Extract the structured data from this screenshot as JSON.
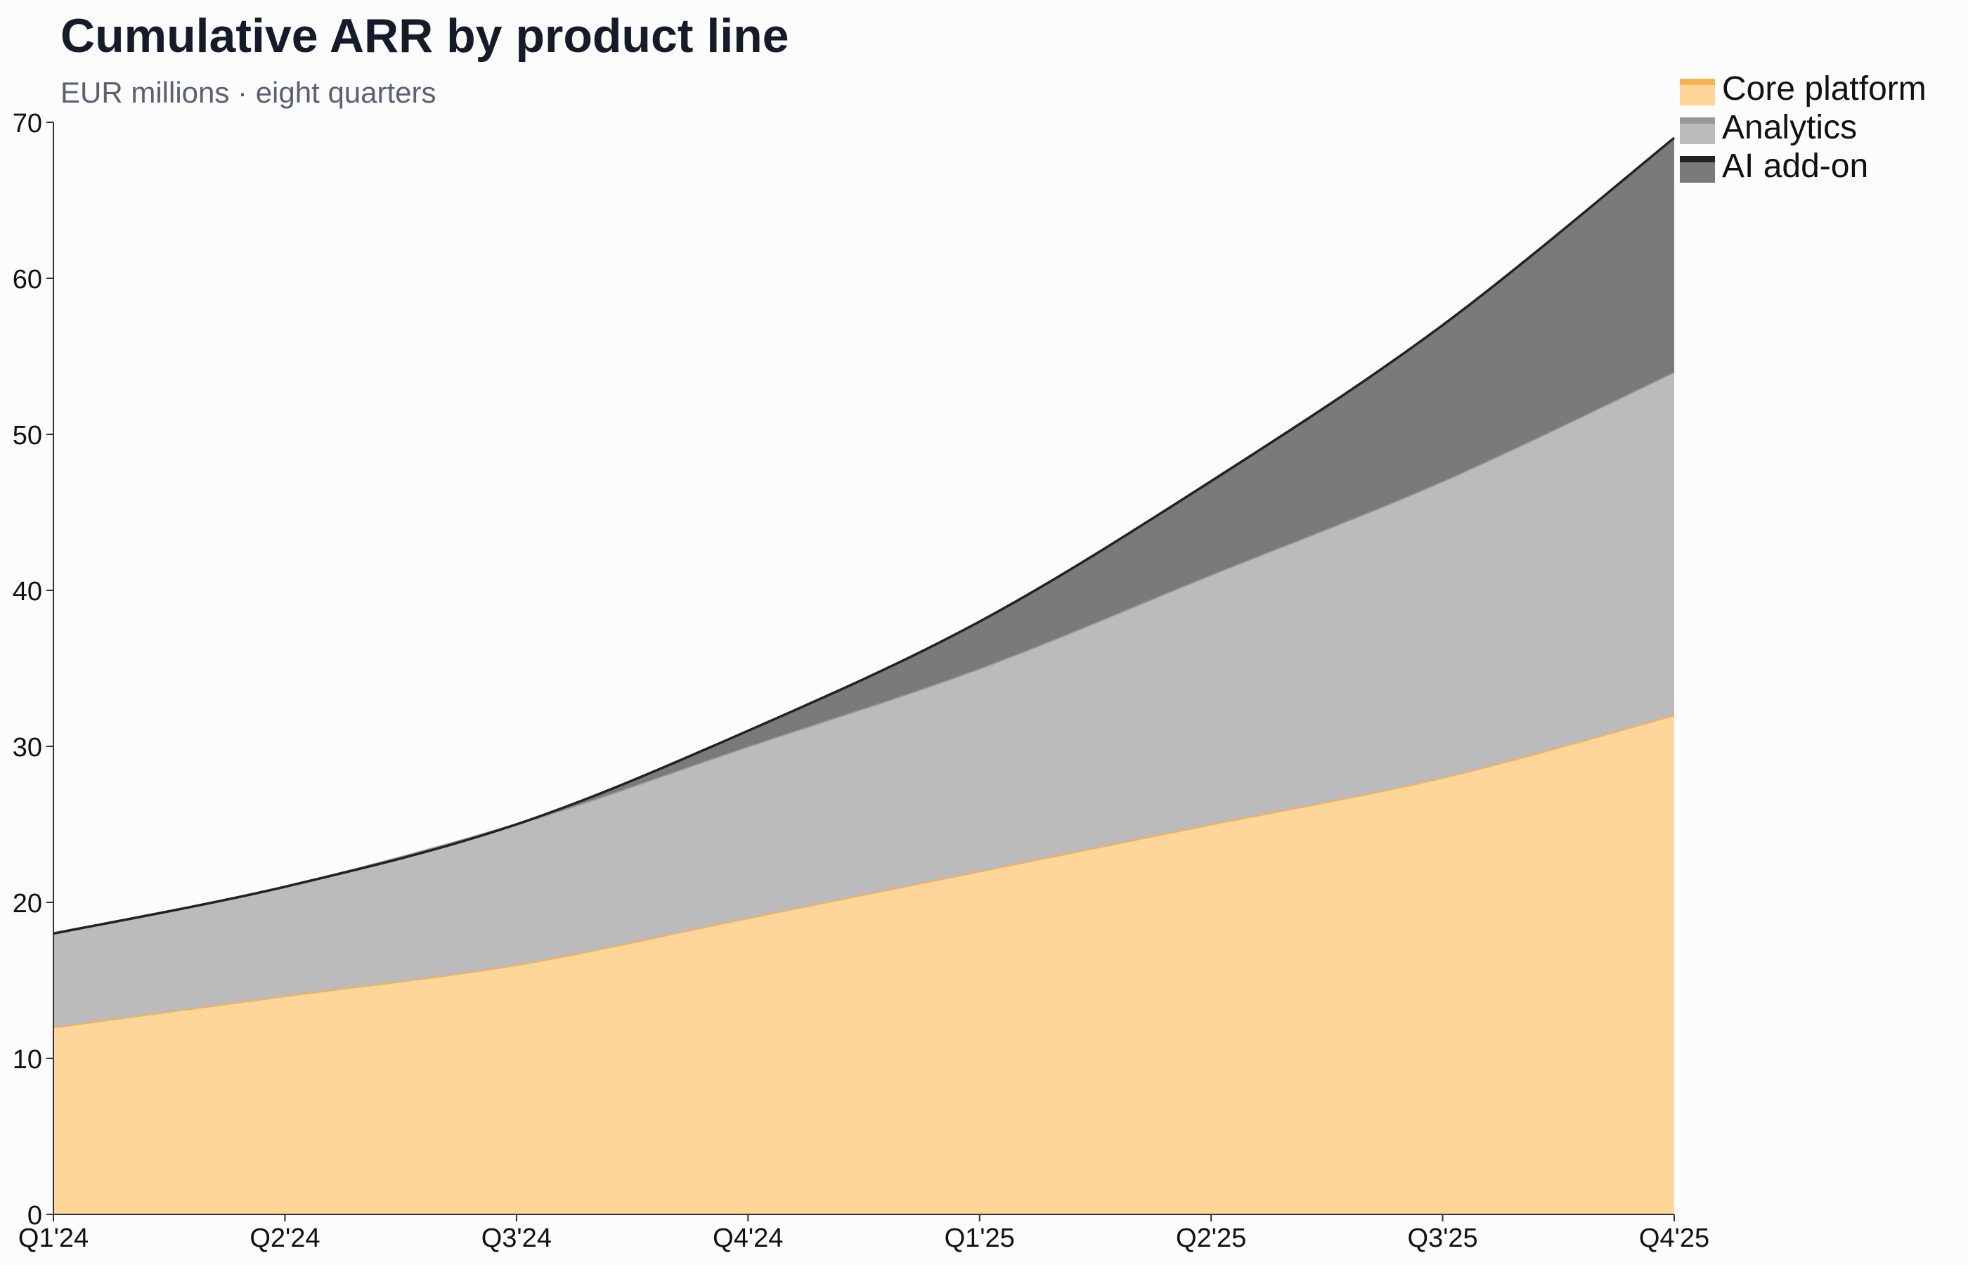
{
  "chart_data": {
    "type": "area",
    "stacked": true,
    "title": "Cumulative ARR by product line",
    "subtitle": "EUR millions · eight quarters",
    "xlabel": "",
    "ylabel": "",
    "categories": [
      "Q1'24",
      "Q2'24",
      "Q3'24",
      "Q4'24",
      "Q1'25",
      "Q2'25",
      "Q3'25",
      "Q4'25"
    ],
    "series": [
      {
        "name": "Core platform",
        "values": [
          12,
          14,
          16,
          19,
          22,
          25,
          28,
          32
        ],
        "fill": "#fed699",
        "stroke": "#f9b04f"
      },
      {
        "name": "Analytics",
        "values": [
          6,
          7,
          9,
          11,
          13,
          16,
          19,
          22
        ],
        "fill": "#bbbbbb",
        "stroke": "#999999"
      },
      {
        "name": "AI add-on",
        "values": [
          0,
          0,
          0,
          1,
          3,
          6,
          10,
          15
        ],
        "fill": "#7a7a7a",
        "stroke": "#222222"
      }
    ],
    "ylim": [
      0,
      70
    ],
    "yticks": [
      0,
      10,
      20,
      30,
      40,
      50,
      60,
      70
    ],
    "grid": false,
    "legend_position": "top-right"
  }
}
